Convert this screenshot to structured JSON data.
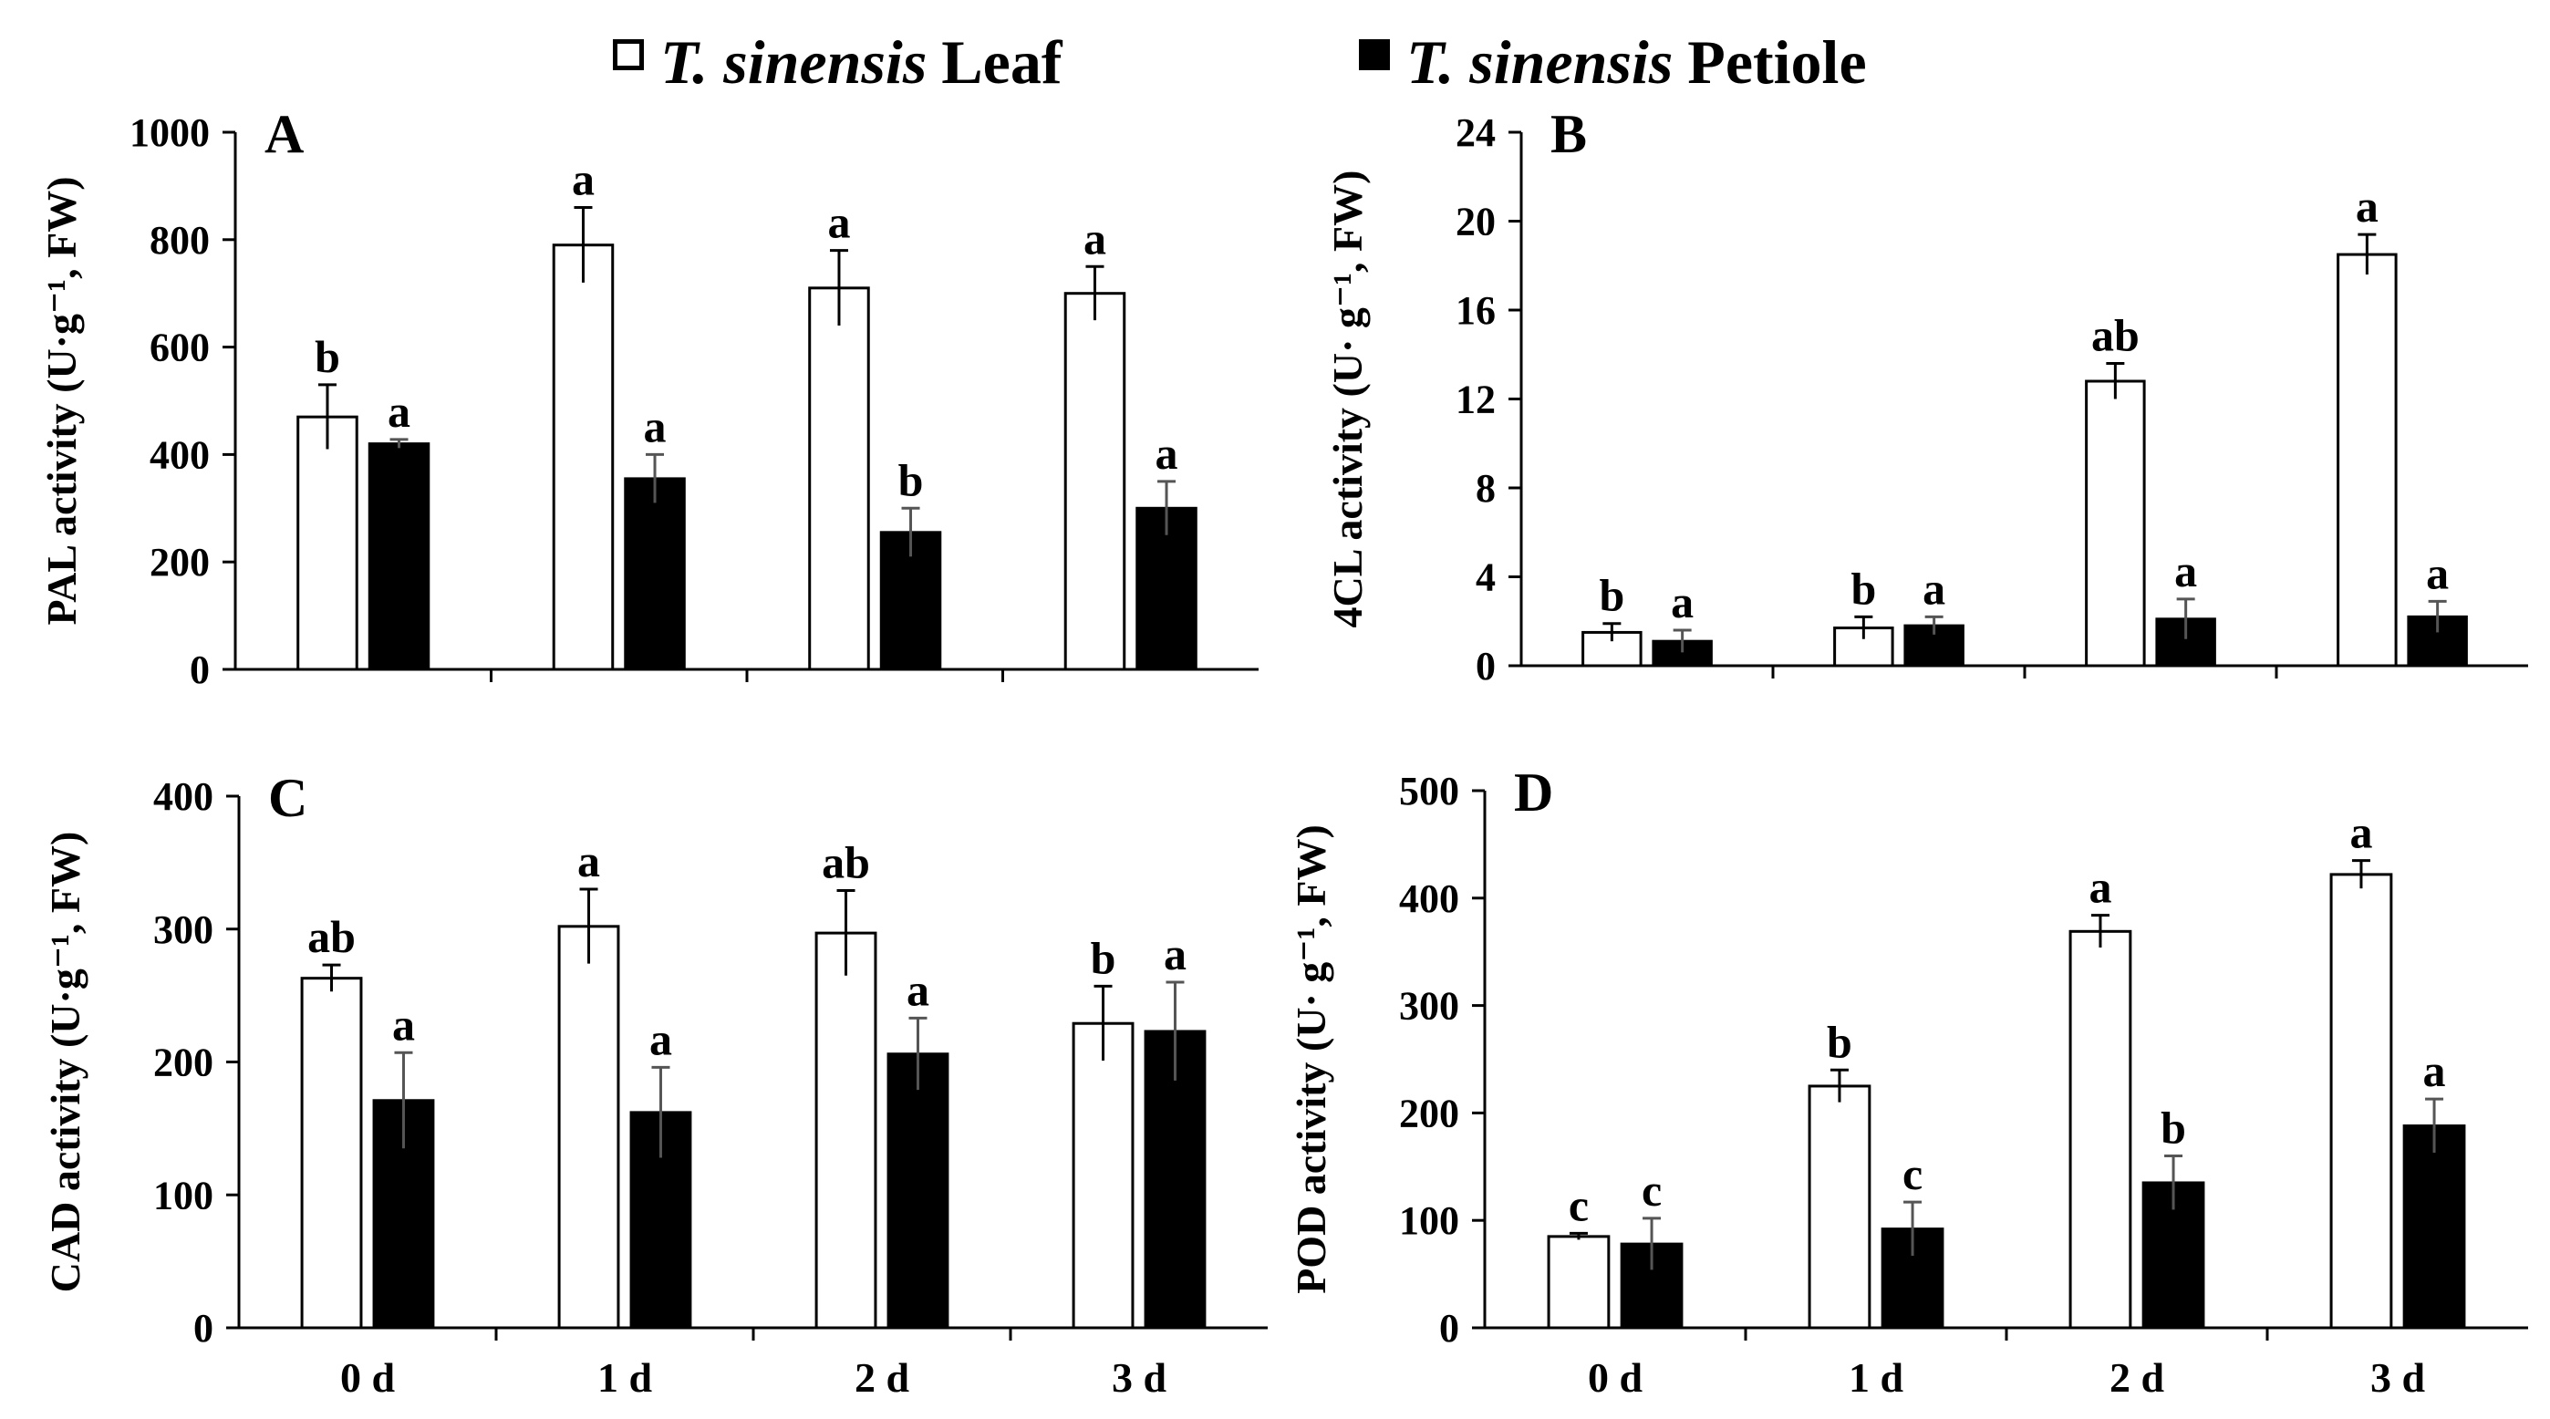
{
  "legend": {
    "leaf": {
      "italic": "T. sinensis",
      "rest": "Leaf",
      "color": "#ffffff"
    },
    "petiole": {
      "italic": "T. sinensis",
      "rest": "Petiole",
      "color": "#000000"
    }
  },
  "chart_data": [
    {
      "type": "bar",
      "panel": "A",
      "ylabel": "PAL activity (U·g⁻¹, FW)",
      "ylim": [
        0,
        1000
      ],
      "yticks": [
        0,
        200,
        400,
        600,
        800,
        1000
      ],
      "categories": [
        "0 d",
        "1 d",
        "2 d",
        "3 d"
      ],
      "show_xticklabels": false,
      "series": [
        {
          "name": "T. sinensis Leaf",
          "color": "#ffffff",
          "values": [
            470,
            790,
            710,
            700
          ],
          "errors": [
            60,
            70,
            70,
            50
          ],
          "labels": [
            "b",
            "a",
            "a",
            "a"
          ]
        },
        {
          "name": "T. sinensis Petiole",
          "color": "#000000",
          "values": [
            420,
            355,
            255,
            300
          ],
          "errors": [
            8,
            45,
            45,
            50
          ],
          "labels": [
            "a",
            "a",
            "b",
            "a"
          ]
        }
      ]
    },
    {
      "type": "bar",
      "panel": "B",
      "ylabel": "4CL activity (U· g⁻¹, FW)",
      "ylim": [
        0,
        24
      ],
      "yticks": [
        0,
        4,
        8,
        12,
        16,
        20,
        24
      ],
      "categories": [
        "0 d",
        "1 d",
        "2 d",
        "3 d"
      ],
      "show_xticklabels": false,
      "series": [
        {
          "name": "T. sinensis Leaf",
          "color": "#ffffff",
          "values": [
            1.5,
            1.7,
            12.8,
            18.5
          ],
          "errors": [
            0.4,
            0.5,
            0.8,
            0.9
          ],
          "labels": [
            "b",
            "b",
            "ab",
            "a"
          ]
        },
        {
          "name": "T. sinensis Petiole",
          "color": "#000000",
          "values": [
            1.1,
            1.8,
            2.1,
            2.2
          ],
          "errors": [
            0.5,
            0.4,
            0.9,
            0.7
          ],
          "labels": [
            "a",
            "a",
            "a",
            "a"
          ]
        }
      ]
    },
    {
      "type": "bar",
      "panel": "C",
      "ylabel": "CAD activity (U·g⁻¹, FW)",
      "ylim": [
        0,
        400
      ],
      "yticks": [
        0,
        100,
        200,
        300,
        400
      ],
      "categories": [
        "0 d",
        "1 d",
        "2 d",
        "3 d"
      ],
      "show_xticklabels": true,
      "series": [
        {
          "name": "T. sinensis Leaf",
          "color": "#ffffff",
          "values": [
            263,
            302,
            297,
            229
          ],
          "errors": [
            10,
            28,
            32,
            28
          ],
          "labels": [
            "ab",
            "a",
            "ab",
            "b"
          ]
        },
        {
          "name": "T. sinensis Petiole",
          "color": "#000000",
          "values": [
            171,
            162,
            206,
            223
          ],
          "errors": [
            36,
            34,
            27,
            37
          ],
          "labels": [
            "a",
            "a",
            "a",
            "a"
          ]
        }
      ]
    },
    {
      "type": "bar",
      "panel": "D",
      "ylabel": "POD activity (U· g⁻¹, FW)",
      "ylim": [
        0,
        500
      ],
      "yticks": [
        0,
        100,
        200,
        300,
        400,
        500
      ],
      "categories": [
        "0 d",
        "1 d",
        "2 d",
        "3 d"
      ],
      "show_xticklabels": true,
      "series": [
        {
          "name": "T. sinensis Leaf",
          "color": "#ffffff",
          "values": [
            85,
            225,
            369,
            422
          ],
          "errors": [
            3,
            15,
            15,
            13
          ],
          "labels": [
            "c",
            "b",
            "a",
            "a"
          ]
        },
        {
          "name": "T. sinensis Petiole",
          "color": "#000000",
          "values": [
            78,
            92,
            135,
            188
          ],
          "errors": [
            24,
            25,
            25,
            25
          ],
          "labels": [
            "c",
            "c",
            "b",
            "a"
          ]
        }
      ]
    }
  ]
}
